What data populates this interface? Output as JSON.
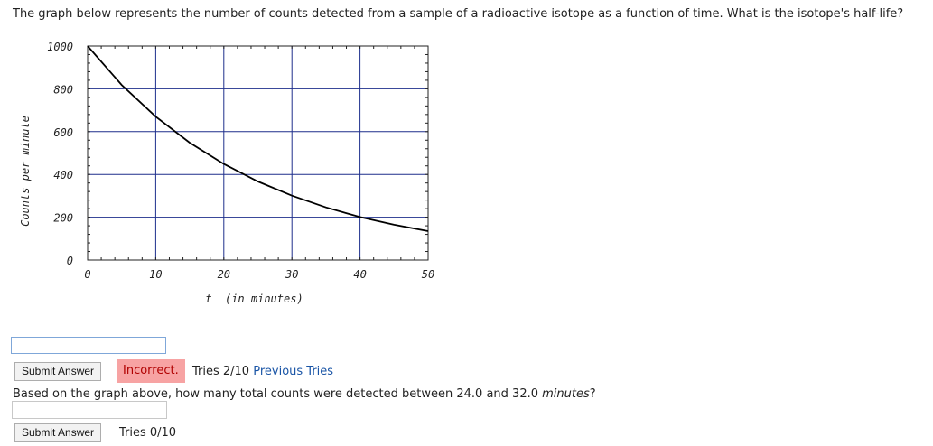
{
  "question1": {
    "text": "The graph below represents the number of counts detected from a sample of a radioactive isotope as a function of time. What is the isotope's half-life?"
  },
  "chart_data": {
    "type": "line",
    "xlabel": "t  (in minutes)",
    "ylabel": "Counts per minute",
    "xlim": [
      0,
      50
    ],
    "ylim": [
      0,
      1000
    ],
    "x_ticks": [
      "0",
      "10",
      "20",
      "30",
      "40",
      "50"
    ],
    "y_ticks": [
      "0",
      "200",
      "400",
      "600",
      "800",
      "1000"
    ],
    "grid": true,
    "series": [
      {
        "x": [
          0,
          5,
          10,
          15,
          20,
          25,
          30,
          35,
          40,
          45,
          50
        ],
        "values": [
          1000,
          818,
          670,
          548,
          449,
          367,
          301,
          246,
          201,
          165,
          135
        ]
      }
    ]
  },
  "answer1": {
    "value": ""
  },
  "submit1": {
    "label": "Submit Answer"
  },
  "status1": {
    "label": "Incorrect."
  },
  "tries1": {
    "text": "Tries 2/10",
    "link": "Previous Tries"
  },
  "question2": {
    "before": "Based on the graph above, how many total counts were detected between 24.0 and 32.0 ",
    "unit": "minutes",
    "after": "?"
  },
  "answer2": {
    "value": ""
  },
  "submit2": {
    "label": "Submit Answer"
  },
  "tries2": {
    "text": "Tries 0/10"
  }
}
